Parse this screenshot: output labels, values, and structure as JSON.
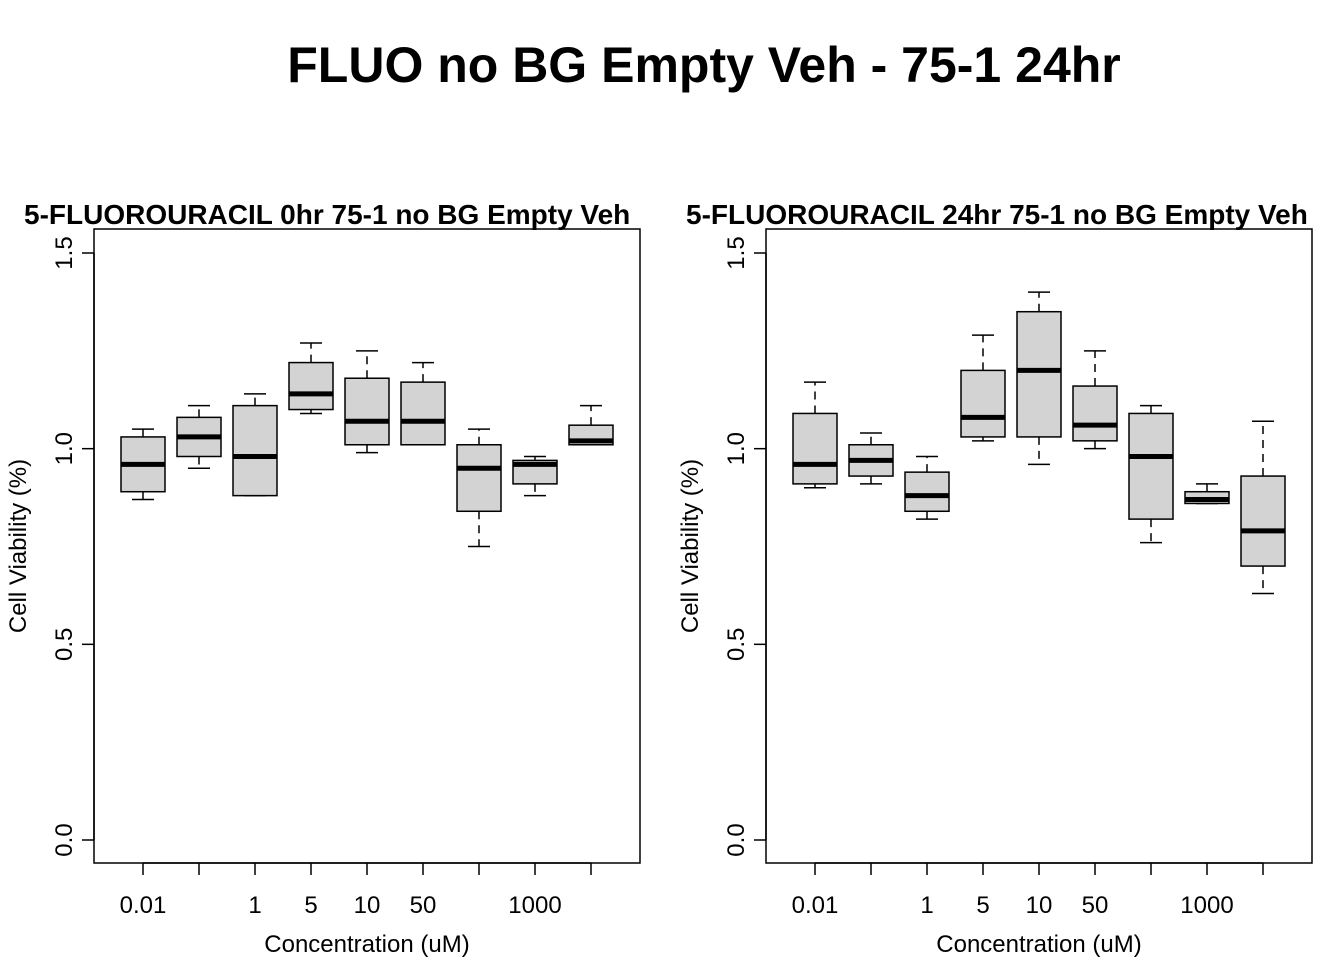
{
  "figure": {
    "title": "FLUO no BG Empty Veh - 75-1 24hr"
  },
  "chart_data": [
    {
      "type": "box",
      "title": "5-FLUOROURACIL 0hr 75-1 no BG Empty Veh",
      "xlabel": "Concentration (uM)",
      "ylabel": "Cell Viability (%)",
      "ylim": [
        0,
        1.5
      ],
      "yticks": [
        "0.0",
        "0.5",
        "1.0",
        "1.5"
      ],
      "categories": [
        "0.01",
        "",
        "1",
        "5",
        "10",
        "50",
        "",
        "1000",
        ""
      ],
      "box_fill": "#d3d3d3",
      "boxes": [
        {
          "min": 0.87,
          "q1": 0.89,
          "median": 0.96,
          "q3": 1.03,
          "max": 1.05
        },
        {
          "min": 0.95,
          "q1": 0.98,
          "median": 1.03,
          "q3": 1.08,
          "max": 1.11
        },
        {
          "min": 0.88,
          "q1": 0.88,
          "median": 0.98,
          "q3": 1.11,
          "max": 1.14
        },
        {
          "min": 1.09,
          "q1": 1.1,
          "median": 1.14,
          "q3": 1.22,
          "max": 1.27
        },
        {
          "min": 0.99,
          "q1": 1.01,
          "median": 1.07,
          "q3": 1.18,
          "max": 1.25
        },
        {
          "min": 1.01,
          "q1": 1.01,
          "median": 1.07,
          "q3": 1.17,
          "max": 1.22
        },
        {
          "min": 0.75,
          "q1": 0.84,
          "median": 0.95,
          "q3": 1.01,
          "max": 1.05
        },
        {
          "min": 0.88,
          "q1": 0.91,
          "median": 0.96,
          "q3": 0.97,
          "max": 0.98
        },
        {
          "min": 1.01,
          "q1": 1.01,
          "median": 1.02,
          "q3": 1.06,
          "max": 1.11
        }
      ]
    },
    {
      "type": "box",
      "title": "5-FLUOROURACIL 24hr 75-1 no BG Empty Veh",
      "xlabel": "Concentration (uM)",
      "ylabel": "Cell Viability (%)",
      "ylim": [
        0,
        1.5
      ],
      "yticks": [
        "0.0",
        "0.5",
        "1.0",
        "1.5"
      ],
      "categories": [
        "0.01",
        "",
        "1",
        "5",
        "10",
        "50",
        "",
        "1000",
        ""
      ],
      "box_fill": "#d3d3d3",
      "boxes": [
        {
          "min": 0.9,
          "q1": 0.91,
          "median": 0.96,
          "q3": 1.09,
          "max": 1.17
        },
        {
          "min": 0.91,
          "q1": 0.93,
          "median": 0.97,
          "q3": 1.01,
          "max": 1.04
        },
        {
          "min": 0.82,
          "q1": 0.84,
          "median": 0.88,
          "q3": 0.94,
          "max": 0.98
        },
        {
          "min": 1.02,
          "q1": 1.03,
          "median": 1.08,
          "q3": 1.2,
          "max": 1.29
        },
        {
          "min": 0.96,
          "q1": 1.03,
          "median": 1.2,
          "q3": 1.35,
          "max": 1.4
        },
        {
          "min": 1.0,
          "q1": 1.02,
          "median": 1.06,
          "q3": 1.16,
          "max": 1.25
        },
        {
          "min": 0.76,
          "q1": 0.82,
          "median": 0.98,
          "q3": 1.09,
          "max": 1.11
        },
        {
          "min": 0.86,
          "q1": 0.86,
          "median": 0.87,
          "q3": 0.89,
          "max": 0.91
        },
        {
          "min": 0.63,
          "q1": 0.7,
          "median": 0.79,
          "q3": 0.93,
          "max": 1.07
        }
      ]
    }
  ]
}
